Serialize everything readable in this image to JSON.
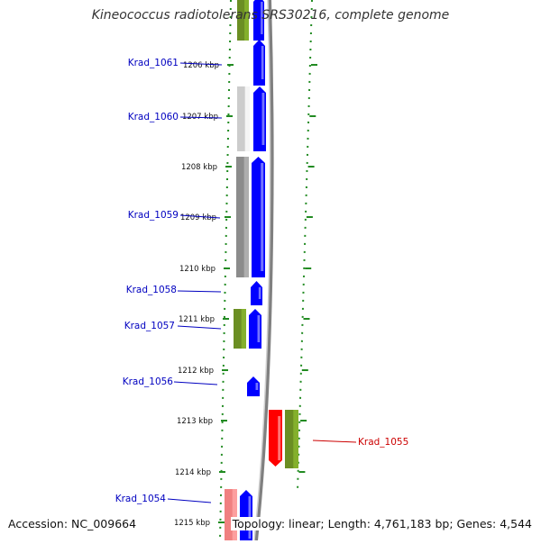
{
  "title": "Kineococcus radiotolerans SRS30216, complete genome",
  "accession": "Accession: NC_009664",
  "summary": "Topology: linear; Length: 4,761,183 bp; Genes: 4,544",
  "colors": {
    "forward_gene": "#0000ff",
    "reverse_gene": "#ff0000",
    "gene_label_forward": "#0000c0",
    "gene_label_reverse": "#cc0000",
    "track_dots": "#228b22",
    "backbone": "#808080",
    "olive_feature": "#6b8e23",
    "gray_feature": "#8c8c8c",
    "light_gray_feature": "#cccccc",
    "pink_feature": "#f08080"
  },
  "ruler_ticks": [
    "1206 kbp",
    "1207 kbp",
    "1208 kbp",
    "1209 kbp",
    "1210 kbp",
    "1211 kbp",
    "1212 kbp",
    "1213 kbp",
    "1214 kbp",
    "1215 kbp"
  ],
  "genes": [
    {
      "label": "Krad_1061",
      "strand": "forward"
    },
    {
      "label": "Krad_1060",
      "strand": "forward"
    },
    {
      "label": "Krad_1059",
      "strand": "forward"
    },
    {
      "label": "Krad_1058",
      "strand": "forward"
    },
    {
      "label": "Krad_1057",
      "strand": "forward"
    },
    {
      "label": "Krad_1056",
      "strand": "forward"
    },
    {
      "label": "Krad_1055",
      "strand": "reverse"
    },
    {
      "label": "Krad_1054",
      "strand": "forward"
    }
  ]
}
